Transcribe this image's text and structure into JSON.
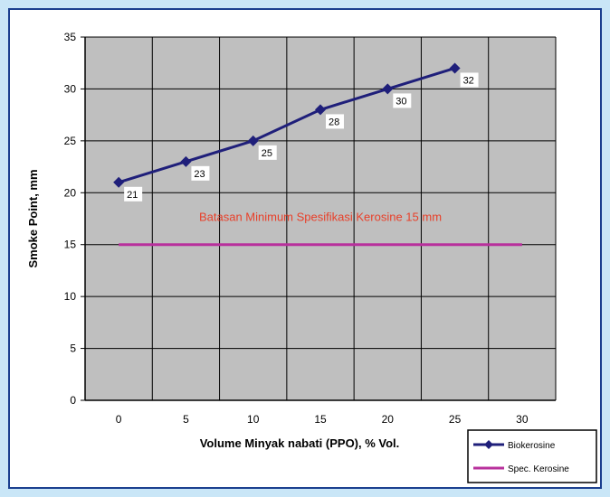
{
  "chart_data": {
    "type": "line",
    "xlabel": "Volume Minyak nabati (PPO), % Vol.",
    "ylabel": "Smoke Point, mm",
    "x_ticks": [
      0,
      5,
      10,
      15,
      20,
      25,
      30
    ],
    "y_ticks": [
      0,
      5,
      10,
      15,
      20,
      25,
      30,
      35
    ],
    "xlim": [
      -2.5,
      32.5
    ],
    "ylim": [
      0,
      35
    ],
    "grid": true,
    "plot_background": "#bfbfbf",
    "legend_position": "bottom-right",
    "series": [
      {
        "name": "Biokerosine",
        "x": [
          0,
          5,
          10,
          15,
          20,
          25
        ],
        "values": [
          21,
          23,
          25,
          28,
          30,
          32
        ],
        "labels": [
          "21",
          "23",
          "25",
          "28",
          "30",
          "32"
        ],
        "color": "#1f1f7a",
        "marker": "diamond"
      },
      {
        "name": "Spec. Kerosine",
        "x": [
          0,
          30
        ],
        "values": [
          15,
          15
        ],
        "color": "#b8309c"
      }
    ],
    "annotation": {
      "text": "Batasan Minimum Spesifikasi Kerosine 15 mm",
      "color": "#e8402a",
      "x": 15,
      "y": 17.3
    }
  }
}
